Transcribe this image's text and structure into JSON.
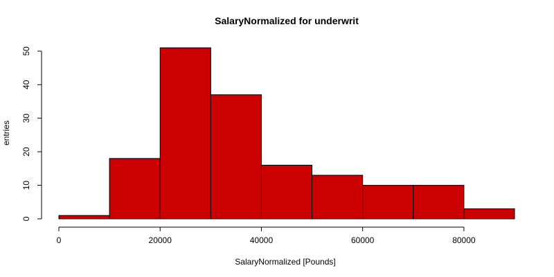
{
  "chart_data": {
    "type": "bar",
    "title": "SalaryNormalized for underwrit",
    "xlabel": "SalaryNormalized [Pounds]",
    "ylabel": "entries",
    "bin_edges": [
      0,
      10000,
      20000,
      30000,
      40000,
      50000,
      60000,
      70000,
      80000,
      90000
    ],
    "values": [
      1,
      18,
      51,
      37,
      16,
      13,
      10,
      10,
      3
    ],
    "xlim": [
      0,
      90000
    ],
    "ylim": [
      0,
      51
    ],
    "x_ticks": [
      0,
      20000,
      40000,
      60000,
      80000
    ],
    "x_tick_labels": [
      "0",
      "20000",
      "40000",
      "60000",
      "80000"
    ],
    "y_ticks": [
      0,
      10,
      20,
      30,
      40,
      50
    ],
    "y_tick_labels": [
      "0",
      "10",
      "20",
      "30",
      "40",
      "50"
    ],
    "bar_color": "#cc0000",
    "grid": false,
    "legend": "none"
  }
}
